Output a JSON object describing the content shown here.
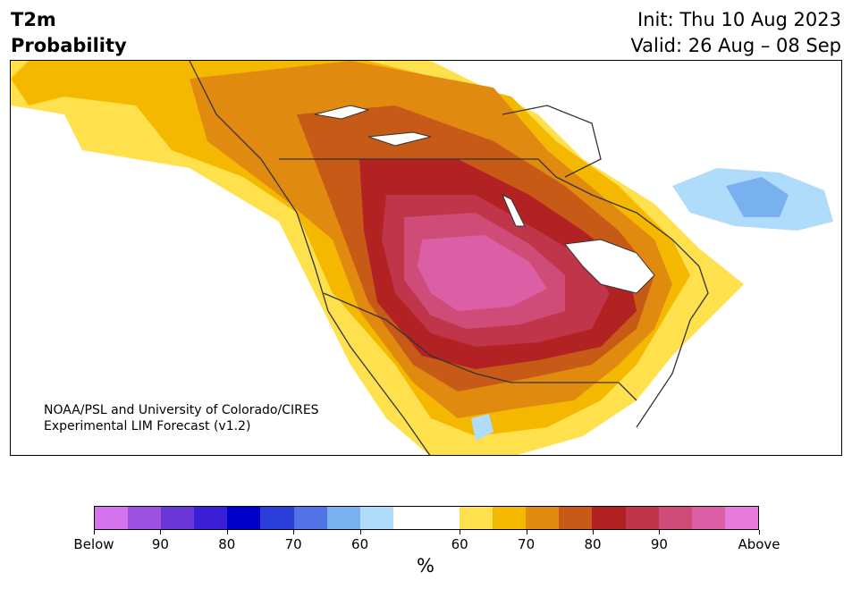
{
  "header": {
    "variable": "T2m",
    "product": "Probability",
    "init": "Init: Thu 10 Aug 2023",
    "valid": "Valid: 26 Aug – 08 Sep"
  },
  "credit": {
    "line1": "NOAA/PSL and University of Colorado/CIRES",
    "line2": "Experimental LIM Forecast (v1.2)"
  },
  "colorbar": {
    "colors": [
      "#d473ec",
      "#9b52e0",
      "#6a36d8",
      "#3b1fd6",
      "#0000cd",
      "#2a3fd9",
      "#5173e6",
      "#78b0f0",
      "#b0dcfb",
      "#ffffff",
      "#ffffff",
      "#ffe14d",
      "#f5b800",
      "#e08a10",
      "#c85a18",
      "#b22222",
      "#c0354a",
      "#d04c78",
      "#dc5fa6",
      "#e87adb"
    ],
    "tick_labels": [
      "Below",
      "90",
      "80",
      "70",
      "60",
      "60",
      "70",
      "80",
      "90",
      "Above"
    ],
    "unit": "%"
  },
  "map": {
    "region": "North America",
    "palette": {
      "neutral": "#ffffff",
      "p60_above": "#ffe14d",
      "p70_above": "#e08a10",
      "p80_above": "#b22222",
      "p90_above": "#dc5fa6",
      "p60_below": "#b0dcfb",
      "p70_below": "#78b0f0",
      "border": "#333333"
    }
  }
}
